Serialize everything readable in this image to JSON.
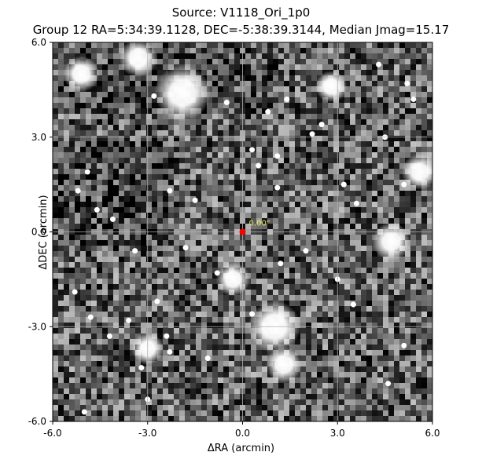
{
  "title_line1": "Source: V1118_Ori_1p0",
  "title_line2": "Group 12 RA=5:34:39.1128, DEC=-5:38:39.3144, Median Jmag=15.17",
  "xlabel": "ΔRA (arcmin)",
  "ylabel": "ΔDEC (arcmin)",
  "chart_data": {
    "type": "scatter",
    "xlim": [
      -6.0,
      6.0
    ],
    "ylim": [
      -6.0,
      6.0
    ],
    "x_ticks": [
      -6.0,
      -3.0,
      0.0,
      3.0,
      6.0
    ],
    "x_tick_labels": [
      "-6.0",
      "-3.0",
      "0.0",
      "3.0",
      "6.0"
    ],
    "y_ticks": [
      -6.0,
      -3.0,
      0.0,
      3.0,
      6.0
    ],
    "y_tick_labels": [
      "-6.0",
      "-3.0",
      "0.0",
      "3.0",
      "6.0"
    ],
    "grid": true,
    "background": "grayscale sky image with stars",
    "marker": {
      "x": 0.0,
      "y": 0.0,
      "color": "#ff0000"
    },
    "annotation": {
      "text": "0.00\"",
      "x": 0.2,
      "y": 0.2,
      "color": "#e8e060"
    }
  },
  "bright_stars": [
    {
      "x": -1.9,
      "y": 4.4,
      "size": 1.0
    },
    {
      "x": -3.3,
      "y": 5.5,
      "size": 0.55
    },
    {
      "x": 1.0,
      "y": -3.0,
      "size": 0.9
    },
    {
      "x": 1.3,
      "y": -4.2,
      "size": 0.5
    },
    {
      "x": 4.7,
      "y": -0.3,
      "size": 0.55
    },
    {
      "x": 5.6,
      "y": 1.9,
      "size": 0.5
    },
    {
      "x": -0.3,
      "y": -1.5,
      "size": 0.45
    },
    {
      "x": -3.0,
      "y": -3.7,
      "size": 0.4
    },
    {
      "x": 2.8,
      "y": 4.6,
      "size": 0.4
    },
    {
      "x": -5.1,
      "y": 5.0,
      "size": 0.5
    }
  ],
  "faint_stars": [
    [
      -5.2,
      1.3
    ],
    [
      -4.6,
      0.7
    ],
    [
      -4.1,
      0.4
    ],
    [
      -2.3,
      1.3
    ],
    [
      -1.8,
      -0.5
    ],
    [
      -1.5,
      1.0
    ],
    [
      0.3,
      2.6
    ],
    [
      0.8,
      3.8
    ],
    [
      1.1,
      2.4
    ],
    [
      1.4,
      4.2
    ],
    [
      2.5,
      3.4
    ],
    [
      3.2,
      1.5
    ],
    [
      3.6,
      0.9
    ],
    [
      4.3,
      5.3
    ],
    [
      5.2,
      4.7
    ],
    [
      5.4,
      4.2
    ],
    [
      4.5,
      3.0
    ],
    [
      5.1,
      1.5
    ],
    [
      2.0,
      -0.6
    ],
    [
      3.0,
      -1.5
    ],
    [
      -4.8,
      -2.7
    ],
    [
      -3.6,
      -2.8
    ],
    [
      -4.2,
      -3.3
    ],
    [
      -2.4,
      -3.3
    ],
    [
      -2.3,
      -3.8
    ],
    [
      -1.1,
      -4.0
    ],
    [
      -3.2,
      -4.3
    ],
    [
      -5.0,
      -5.7
    ],
    [
      -3.0,
      -5.3
    ],
    [
      4.6,
      -4.8
    ],
    [
      5.1,
      -3.6
    ],
    [
      3.5,
      -2.3
    ],
    [
      -5.3,
      -1.9
    ],
    [
      -3.4,
      -0.6
    ],
    [
      -0.8,
      -1.3
    ],
    [
      1.2,
      -1.0
    ],
    [
      -2.8,
      4.3
    ],
    [
      -0.5,
      4.1
    ],
    [
      2.2,
      3.1
    ],
    [
      -4.9,
      1.9
    ],
    [
      -2.7,
      -2.2
    ],
    [
      0.5,
      2.1
    ],
    [
      1.1,
      1.4
    ],
    [
      0.3,
      -2.6
    ]
  ]
}
